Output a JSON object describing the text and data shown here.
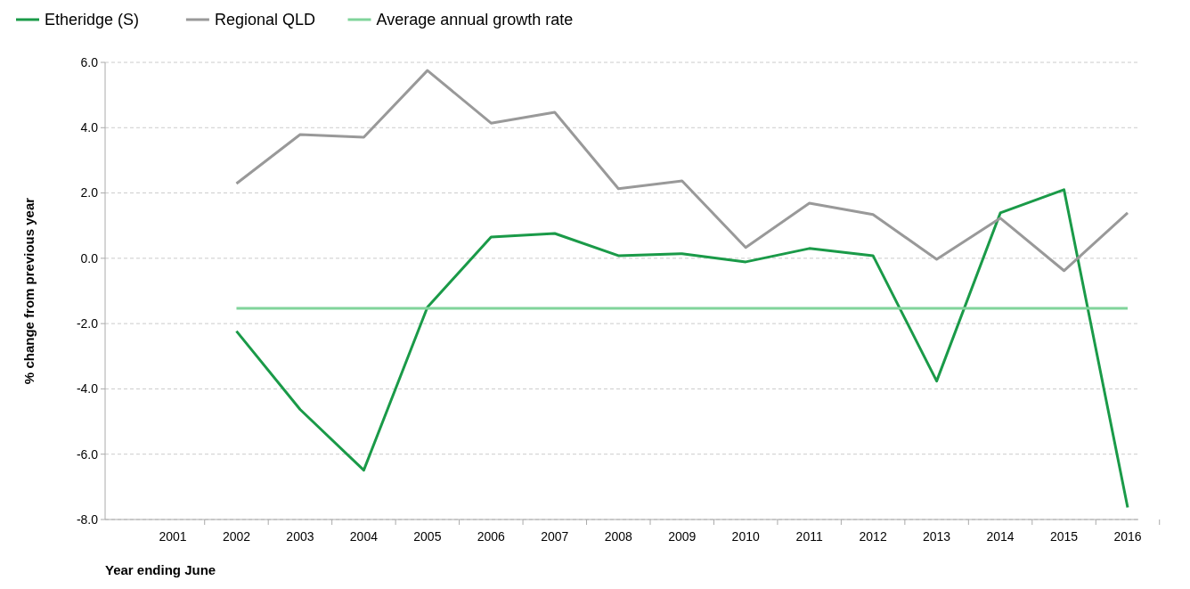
{
  "chart_data": {
    "type": "line",
    "xlabel": "Year ending June",
    "ylabel": "% change from previous year",
    "categories": [
      "2001",
      "2002",
      "2003",
      "2004",
      "2005",
      "2006",
      "2007",
      "2008",
      "2009",
      "2010",
      "2011",
      "2012",
      "2013",
      "2014",
      "2015",
      "2016"
    ],
    "series": [
      {
        "name": "Etheridge (S)",
        "color": "#1a9a48",
        "values": [
          null,
          -2.23,
          -4.63,
          -6.49,
          -1.5,
          0.65,
          0.76,
          0.08,
          0.14,
          -0.11,
          0.3,
          0.08,
          -3.76,
          1.39,
          2.1,
          -7.63
        ]
      },
      {
        "name": "Regional QLD",
        "color": "#999999",
        "values": [
          null,
          2.29,
          3.79,
          3.71,
          5.75,
          4.14,
          4.47,
          2.13,
          2.37,
          0.33,
          1.69,
          1.34,
          -0.03,
          1.23,
          -0.38,
          1.39
        ]
      },
      {
        "name": "Average annual growth rate",
        "color": "#80d49b",
        "values": [
          null,
          -1.53,
          -1.53,
          -1.53,
          -1.53,
          -1.53,
          -1.53,
          -1.53,
          -1.53,
          -1.53,
          -1.53,
          -1.53,
          -1.53,
          -1.53,
          -1.53,
          -1.53
        ]
      }
    ],
    "ylim": [
      -8,
      6
    ],
    "yticks": [
      {
        "value": -8,
        "label": "-8.0"
      },
      {
        "value": -6,
        "label": "-6.0"
      },
      {
        "value": -4,
        "label": "-4.0"
      },
      {
        "value": -2,
        "label": "-2.0"
      },
      {
        "value": 0,
        "label": "0.0"
      },
      {
        "value": 2,
        "label": "2.0"
      },
      {
        "value": 4,
        "label": "4.0"
      },
      {
        "value": 6,
        "label": "6.0"
      }
    ],
    "grid": "y",
    "legend": "top left",
    "line_style": "solid"
  }
}
